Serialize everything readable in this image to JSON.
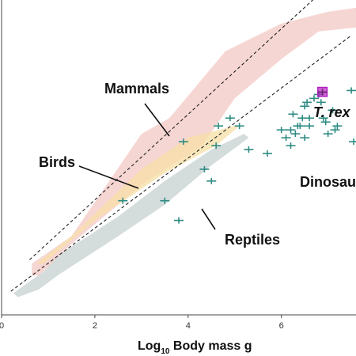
{
  "chart_data": {
    "type": "scatter",
    "xlabel_main": "Log",
    "xlabel_sub": "10",
    "xlabel_rest": " Body mass g",
    "xlim": [
      0,
      7.6
    ],
    "ylim": [
      0,
      8
    ],
    "x_ticks": [
      0,
      2,
      4,
      6
    ],
    "tick_labels": [
      "0",
      "2",
      "4",
      "6"
    ],
    "colors": {
      "mammals": "#f4cfcb",
      "birds": "#f7dfa6",
      "reptiles": "#cfd8d8",
      "dinosaurs": "#2e8b83",
      "trex": "#b21fc0",
      "axis": "#444444",
      "trend": "#222222"
    },
    "annotations": {
      "mammals": "Mammals",
      "birds": "Birds",
      "reptiles": "Reptiles",
      "dinosaurs": "Dinosau",
      "trex": "T. rex"
    },
    "regions": {
      "mammals": [
        [
          0.65,
          1.0
        ],
        [
          0.65,
          1.3
        ],
        [
          1.5,
          2.0
        ],
        [
          3.0,
          4.6
        ],
        [
          3.6,
          5.0
        ],
        [
          4.8,
          6.7
        ],
        [
          6.0,
          7.4
        ],
        [
          7.0,
          7.7
        ],
        [
          7.6,
          7.8
        ],
        [
          7.6,
          7.3
        ],
        [
          6.8,
          7.2
        ],
        [
          6.0,
          6.5
        ],
        [
          5.0,
          5.5
        ],
        [
          4.3,
          4.3
        ],
        [
          3.0,
          3.3
        ],
        [
          1.5,
          1.8
        ],
        [
          0.8,
          1.0
        ]
      ],
      "birds": [
        [
          0.75,
          1.3
        ],
        [
          1.5,
          2.0
        ],
        [
          3.0,
          3.7
        ],
        [
          4.0,
          4.5
        ],
        [
          5.0,
          4.8
        ],
        [
          5.1,
          4.8
        ],
        [
          4.6,
          4.3
        ],
        [
          3.5,
          3.6
        ],
        [
          2.0,
          2.4
        ],
        [
          0.9,
          1.3
        ]
      ],
      "reptiles": [
        [
          0.25,
          0.55
        ],
        [
          0.9,
          1.1
        ],
        [
          1.2,
          1.5
        ],
        [
          2.5,
          2.5
        ],
        [
          3.5,
          3.4
        ],
        [
          4.5,
          4.2
        ],
        [
          5.2,
          4.6
        ],
        [
          5.3,
          4.5
        ],
        [
          4.5,
          3.8
        ],
        [
          3.5,
          2.8
        ],
        [
          2.5,
          2.0
        ],
        [
          1.2,
          1.0
        ],
        [
          0.8,
          0.65
        ],
        [
          0.35,
          0.45
        ]
      ],
      "trex_box": [
        [
          6.78,
          5.55
        ],
        [
          6.98,
          5.55
        ],
        [
          6.98,
          5.78
        ],
        [
          6.78,
          5.78
        ]
      ]
    },
    "trendlines": [
      {
        "name": "upper",
        "x": [
          0.6,
          7.5
        ],
        "y": [
          1.4,
          8.9
        ]
      },
      {
        "name": "lower",
        "x": [
          0.2,
          7.5
        ],
        "y": [
          0.6,
          7.1
        ]
      }
    ],
    "dinosaurs": {
      "x": [
        2.6,
        3.5,
        3.8,
        3.9,
        4.35,
        4.5,
        4.6,
        4.65,
        4.9,
        5.1,
        5.3,
        5.7,
        6.0,
        6.1,
        6.2,
        6.2,
        6.25,
        6.3,
        6.35,
        6.4,
        6.45,
        6.5,
        6.5,
        6.55,
        6.6,
        6.6,
        6.7,
        6.8,
        6.85,
        6.9,
        6.95,
        7.0,
        7.1,
        7.15,
        7.2,
        7.5,
        7.55
      ],
      "y": [
        2.9,
        2.9,
        2.4,
        4.4,
        3.7,
        3.4,
        4.3,
        4.8,
        5.0,
        4.8,
        4.2,
        4.1,
        4.7,
        4.5,
        4.3,
        4.7,
        5.1,
        4.6,
        4.8,
        4.8,
        5.0,
        5.3,
        4.5,
        5.4,
        5.0,
        4.8,
        5.5,
        5.6,
        5.4,
        5.0,
        4.9,
        4.6,
        5.2,
        4.7,
        4.8,
        5.7,
        4.4
      ]
    },
    "trex_point": {
      "x": 6.88,
      "y": 5.66
    }
  }
}
